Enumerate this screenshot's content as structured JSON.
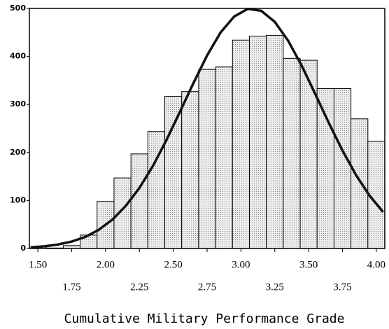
{
  "chart_data": {
    "type": "histogram",
    "xlabel": "Cumulative Military Performance Grade",
    "bins": [
      1.4375,
      1.5625,
      1.6875,
      1.8125,
      1.9375,
      2.0625,
      2.1875,
      2.3125,
      2.4375,
      2.5625,
      2.6875,
      2.8125,
      2.9375,
      3.0625,
      3.1875,
      3.3125,
      3.4375,
      3.5625,
      3.6875,
      3.8125,
      3.9375,
      4.0625
    ],
    "counts": [
      3,
      1,
      6,
      28,
      98,
      147,
      197,
      244,
      317,
      327,
      373,
      378,
      434,
      442,
      444,
      396,
      392,
      333,
      333,
      270,
      223
    ],
    "color": "#d8d8d8",
    "curve": {
      "color": "#111111",
      "x": [
        1.45,
        1.55,
        1.65,
        1.75,
        1.85,
        1.95,
        2.05,
        2.15,
        2.25,
        2.35,
        2.45,
        2.55,
        2.65,
        2.75,
        2.85,
        2.95,
        3.05,
        3.15,
        3.25,
        3.35,
        3.45,
        3.55,
        3.65,
        3.75,
        3.85,
        3.95,
        4.05
      ],
      "values": [
        2.5,
        4.6,
        8.4,
        14.5,
        24,
        39,
        60,
        89,
        126,
        172,
        226,
        285,
        345,
        402,
        450,
        483,
        499,
        495,
        472,
        432,
        380,
        321,
        261,
        204,
        153,
        110,
        76
      ]
    },
    "xlim": [
      1.4375,
      4.0625
    ],
    "xticks": [
      {
        "value": 1.5,
        "label": "1.50"
      },
      {
        "value": 1.75,
        "label": "1.75"
      },
      {
        "value": 2.0,
        "label": "2.00"
      },
      {
        "value": 2.25,
        "label": "2.25"
      },
      {
        "value": 2.5,
        "label": "2.50"
      },
      {
        "value": 2.75,
        "label": "2.75"
      },
      {
        "value": 3.0,
        "label": "3.00"
      },
      {
        "value": 3.25,
        "label": "3.25"
      },
      {
        "value": 3.5,
        "label": "3.50"
      },
      {
        "value": 3.75,
        "label": "3.75"
      },
      {
        "value": 4.0,
        "label": "4.00"
      }
    ],
    "ylim": [
      0,
      500
    ],
    "yticks": [
      0,
      100,
      200,
      300,
      400,
      500
    ]
  }
}
